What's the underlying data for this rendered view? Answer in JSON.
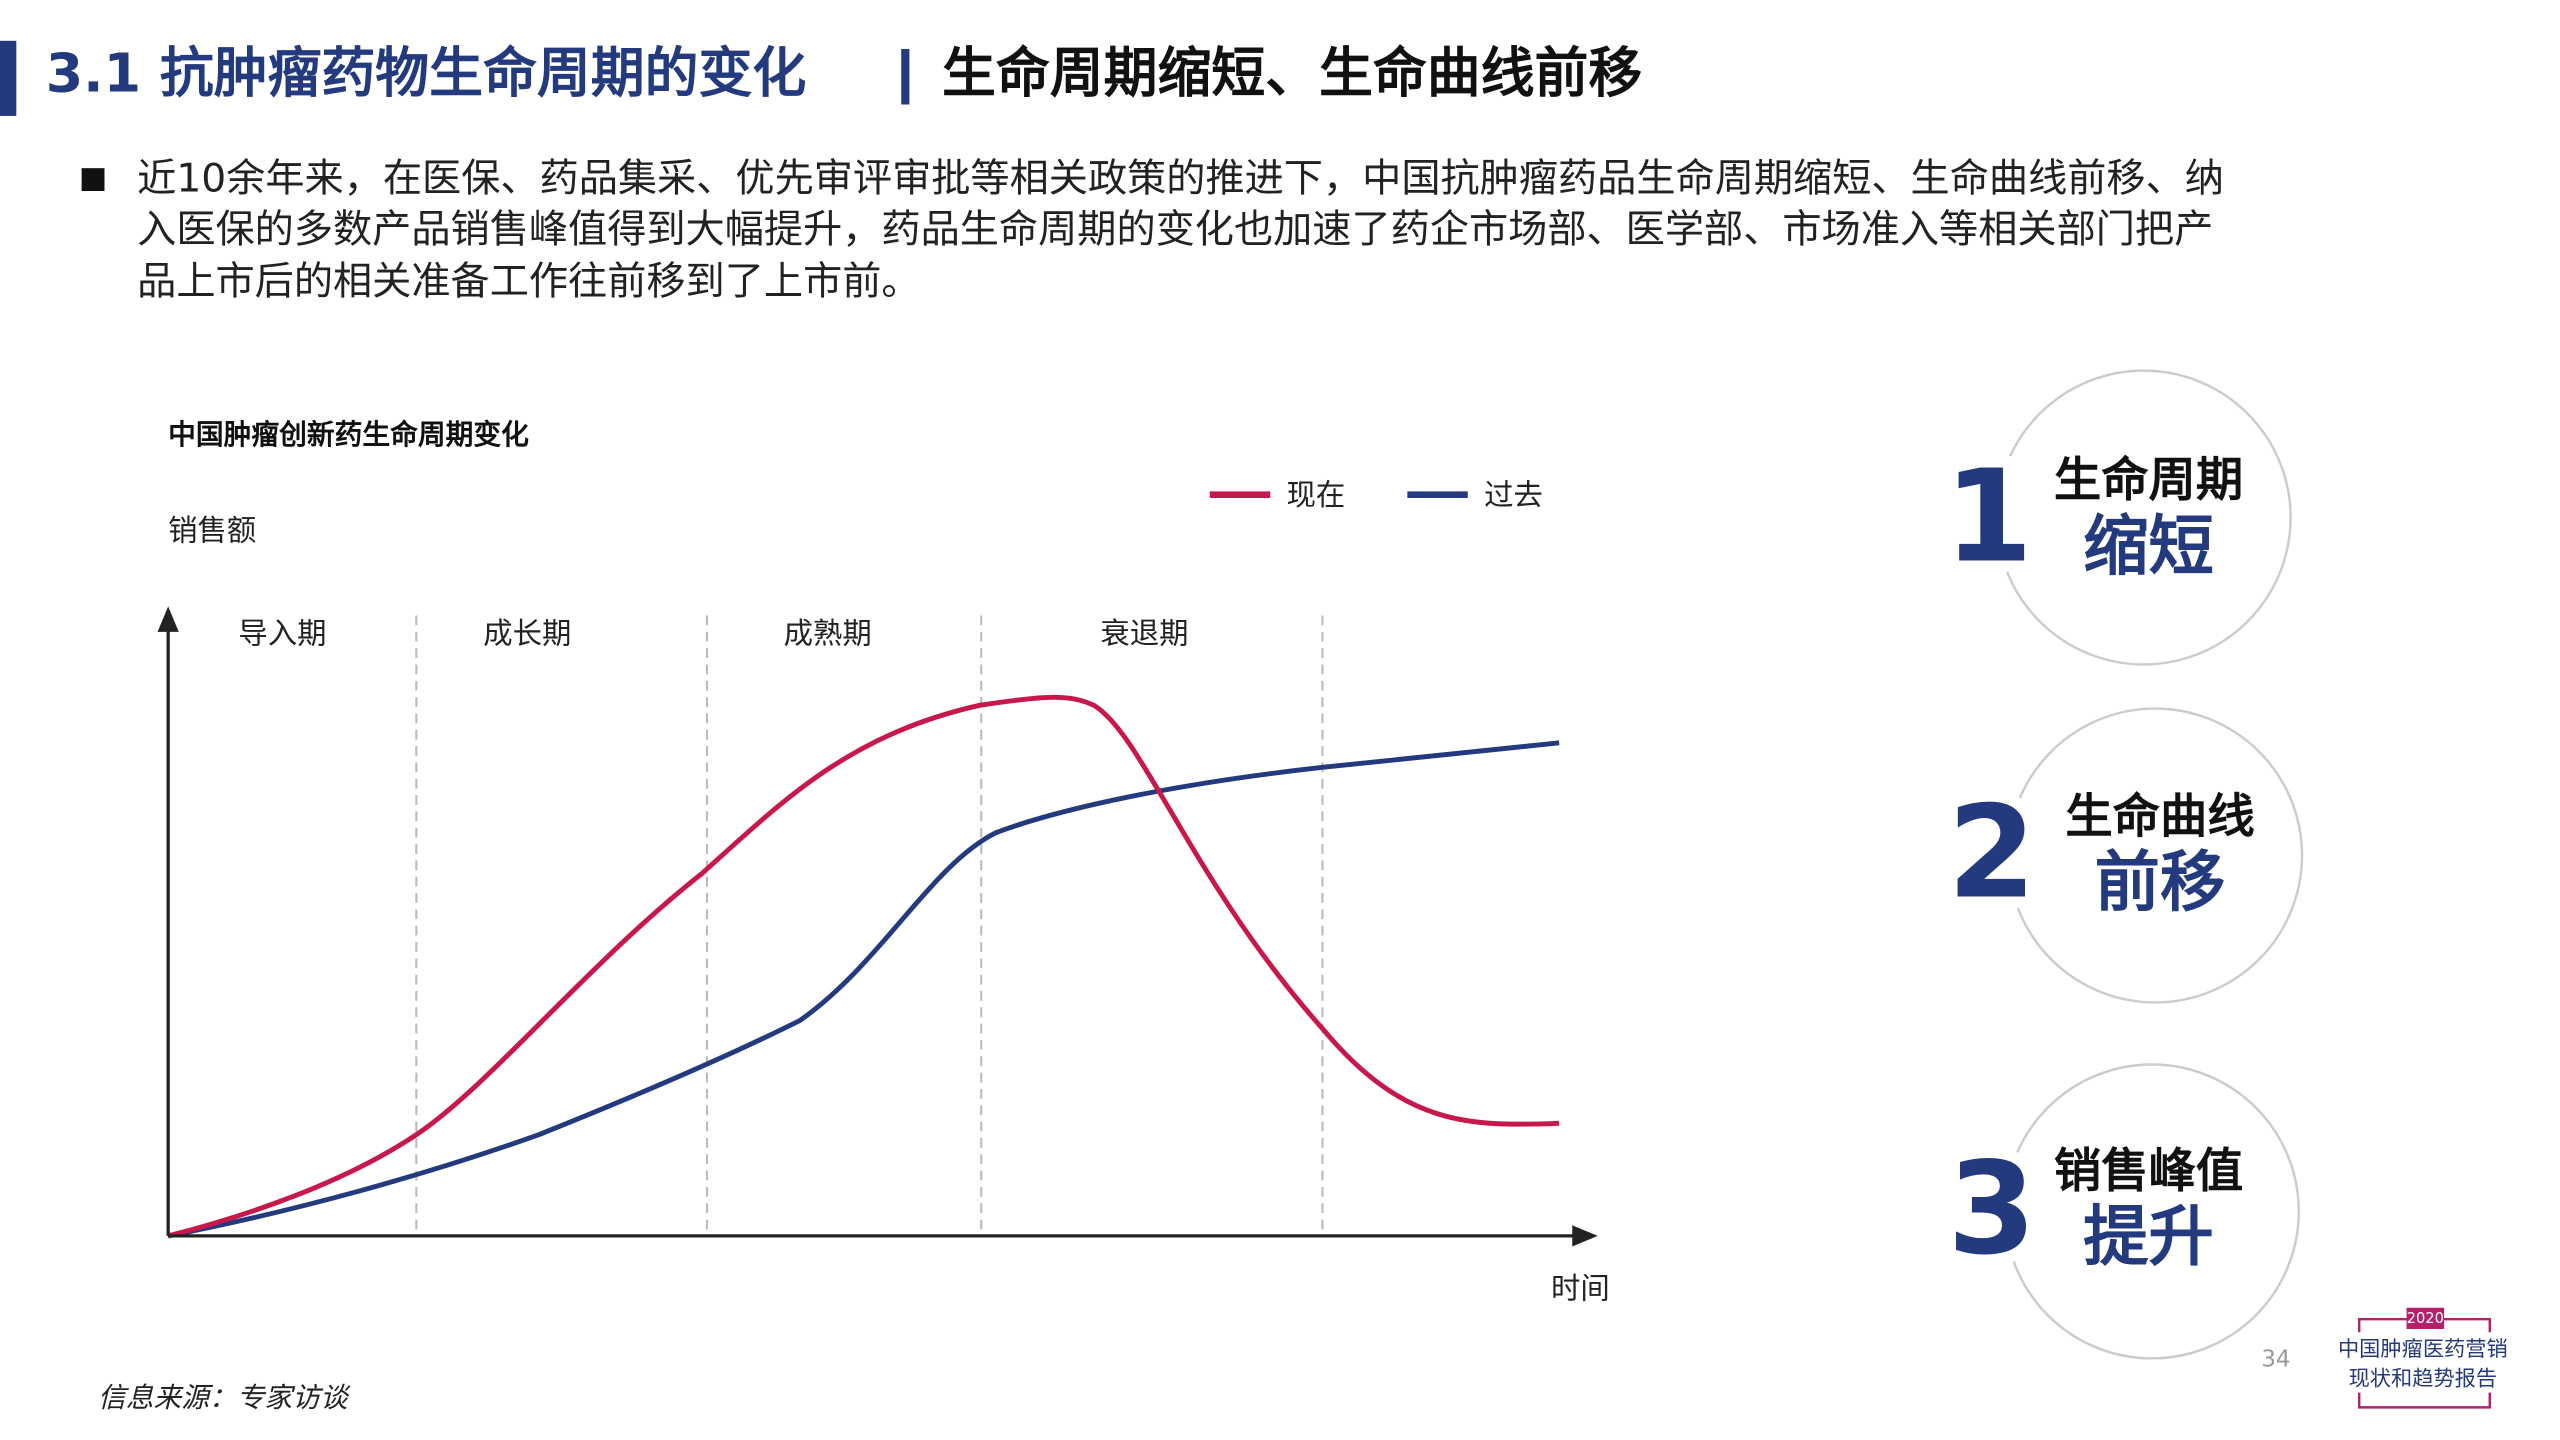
{
  "header": {
    "section_title": "3.1 抗肿瘤药物生命周期的变化",
    "subtitle": "生命周期缩短、生命曲线前移"
  },
  "bullet": {
    "lines": [
      "近10余年来，在医保、药品集采、优先审评审批等相关政策的推进下，中国抗肿瘤药品生命周期缩短、生命曲线前移、纳",
      "入医保的多数产品销售峰值得到大幅提升，药品生命周期的变化也加速了药企市场部、医学部、市场准入等相关部门把产",
      "品上市后的相关准备工作往前移到了上市前。"
    ]
  },
  "figure": {
    "title": "中国肿瘤创新药生命周期变化",
    "y_label": "销售额",
    "x_label": "时间",
    "legend": [
      {
        "name": "现在",
        "color": "#c8174a"
      },
      {
        "name": "过去",
        "color": "#233a7e"
      }
    ],
    "stages": [
      "导入期",
      "成长期",
      "成熟期",
      "衰退期"
    ]
  },
  "points": [
    {
      "number": "1",
      "line1": "生命周期",
      "line2": "缩短"
    },
    {
      "number": "2",
      "line1": "生命曲线",
      "line2": "前移"
    },
    {
      "number": "3",
      "line1": "销售峰值",
      "line2": "提升"
    }
  ],
  "source": "信息来源：专家访谈",
  "page_number": "34",
  "logo": {
    "year": "2020",
    "line1": "中国肿瘤医药营销",
    "line2": "现状和趋势报告"
  }
}
